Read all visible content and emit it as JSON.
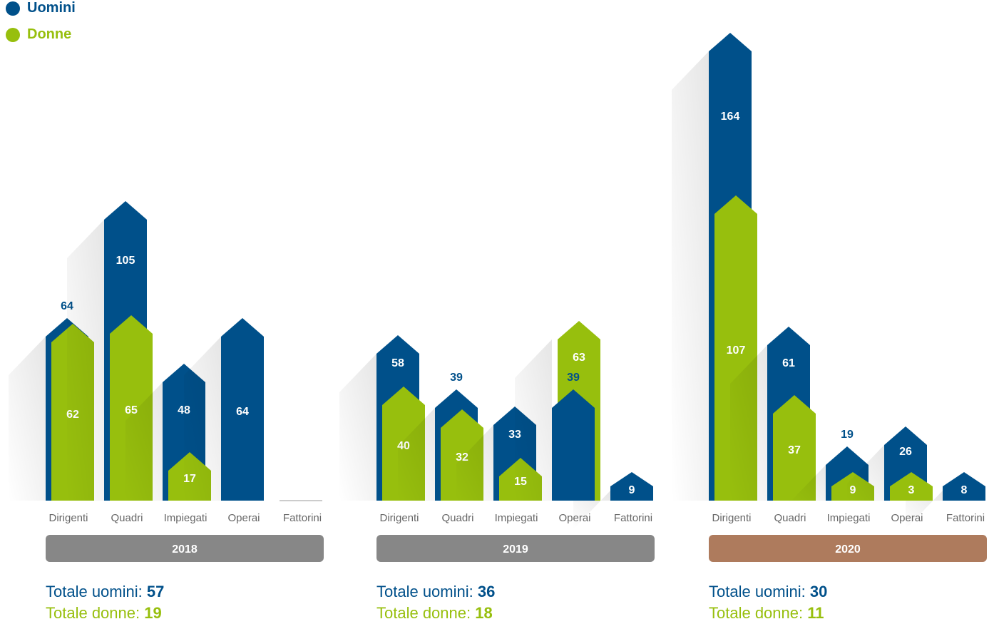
{
  "colors": {
    "uomini": "#00508a",
    "donne": "#97bf0d",
    "band_default": "#878787",
    "band_highlight": "#ae7b5d",
    "category_text": "#666666"
  },
  "legend": [
    {
      "label": "Uomini",
      "color": "#00508a"
    },
    {
      "label": "Donne",
      "color": "#97bf0d"
    }
  ],
  "totals_labels": {
    "men": "Totale uomini:",
    "women": "Totale donne:"
  },
  "chart_data": [
    {
      "type": "bar",
      "title": "2018",
      "categories": [
        "Dirigenti",
        "Quadri",
        "Impiegati",
        "Operai",
        "Fattorini"
      ],
      "series": [
        {
          "name": "Uomini",
          "values": [
            64,
            105,
            48,
            64,
            0
          ]
        },
        {
          "name": "Donne",
          "values": [
            62,
            65,
            17,
            0,
            0
          ]
        }
      ],
      "totals": {
        "men": "57",
        "women": "19"
      },
      "highlight": false
    },
    {
      "type": "bar",
      "title": "2019",
      "categories": [
        "Dirigenti",
        "Quadri",
        "Impiegati",
        "Operai",
        "Fattorini"
      ],
      "series": [
        {
          "name": "Uomini",
          "values": [
            58,
            39,
            33,
            39,
            9
          ]
        },
        {
          "name": "Donne",
          "values": [
            40,
            32,
            15,
            63,
            0
          ]
        }
      ],
      "totals": {
        "men": "36",
        "women": "18"
      },
      "highlight": false
    },
    {
      "type": "bar",
      "title": "2020",
      "categories": [
        "Dirigenti",
        "Quadri",
        "Impiegati",
        "Operai",
        "Fattorini"
      ],
      "series": [
        {
          "name": "Uomini",
          "values": [
            164,
            61,
            19,
            26,
            8
          ]
        },
        {
          "name": "Donne",
          "values": [
            107,
            37,
            9,
            3,
            0
          ]
        }
      ],
      "totals": {
        "men": "30",
        "women": "11"
      },
      "highlight": true
    }
  ]
}
